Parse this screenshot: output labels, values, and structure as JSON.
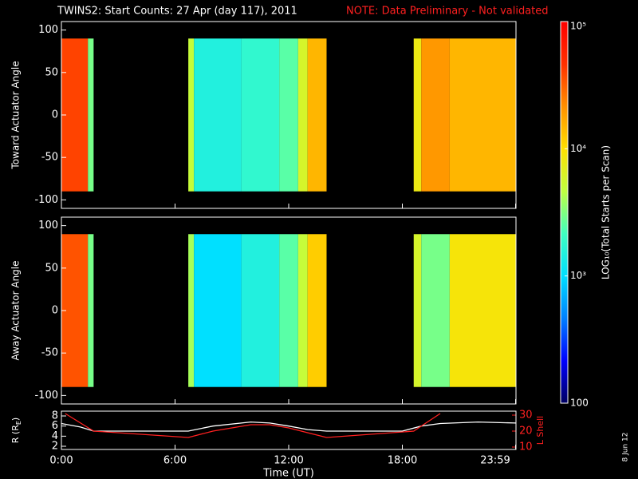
{
  "chart_data": {
    "type": "spectrogram",
    "title": "TWINS2: Start Counts: 27 Apr (day 117), 2011",
    "note": "NOTE: Data Preliminary - Not validated",
    "xlabel": "Time (UT)",
    "xlim": [
      0,
      24
    ],
    "xticks": [
      {
        "value": 0,
        "label": "0:00"
      },
      {
        "value": 6,
        "label": "6:00"
      },
      {
        "value": 12,
        "label": "12:00"
      },
      {
        "value": 18,
        "label": "18:00"
      },
      {
        "value": 23.98,
        "label": "23:59"
      }
    ],
    "colorbar": {
      "label": "LOG₁₀(Total Starts per Scan)",
      "log": true,
      "lim": [
        100,
        100000
      ],
      "ticks": [
        {
          "value": 100,
          "label": "100"
        },
        {
          "value": 1000,
          "label": "10³"
        },
        {
          "value": 10000,
          "label": "10⁴"
        },
        {
          "value": 100000,
          "label": "10⁵"
        }
      ],
      "colormap": [
        "#000060",
        "#0000ff",
        "#0080ff",
        "#00e0ff",
        "#40ffc0",
        "#c0ff40",
        "#ffe000",
        "#ff9000",
        "#ff3000",
        "#ff0000"
      ]
    },
    "panels": [
      {
        "ylabel": "Toward Actuator Angle",
        "ylim": [
          -110,
          110
        ],
        "yticks": [
          -100,
          -50,
          0,
          50,
          100
        ],
        "angle_range": [
          -90,
          90
        ],
        "time_bins": [
          0,
          1.4,
          1.7,
          6.7,
          7.0,
          9.5,
          11.5,
          12.5,
          13.0,
          14.0,
          18.6,
          19.0,
          20.5,
          24
        ],
        "values": [
          40000,
          3000,
          null,
          5000,
          1500,
          1800,
          2500,
          6000,
          15000,
          null,
          8000,
          20000,
          15000
        ]
      },
      {
        "ylabel": "Away Actuator Angle",
        "ylim": [
          -110,
          110
        ],
        "yticks": [
          -100,
          -50,
          0,
          50,
          100
        ],
        "angle_range": [
          -90,
          90
        ],
        "time_bins": [
          0,
          1.4,
          1.7,
          6.7,
          7.0,
          9.5,
          11.5,
          12.5,
          13.0,
          14.0,
          18.6,
          19.0,
          20.5,
          24
        ],
        "values": [
          35000,
          3000,
          null,
          4000,
          1000,
          1500,
          2500,
          5000,
          12000,
          null,
          6000,
          3000,
          9000
        ]
      },
      {
        "type": "line",
        "ylabel": "R (R",
        "ylabel_sub": "E",
        "ylabel_end": ")",
        "ylim": [
          1.37,
          8.95
        ],
        "yticks": [
          2,
          4,
          6,
          8
        ],
        "y2label": "L Shell",
        "y2lim": [
          8.5,
          32.5
        ],
        "y2ticks": [
          10,
          20,
          30
        ],
        "series": [
          {
            "name": "R",
            "color": "#ffffff",
            "x": [
              0,
              1,
              1.7,
              3,
              5,
              6.7,
              8,
              10,
              11,
              12,
              13,
              14,
              16,
              18,
              19,
              20,
              22,
              24
            ],
            "values": [
              6.5,
              5.8,
              5,
              5,
              5,
              5,
              6,
              6.8,
              6.6,
              6,
              5.3,
              5,
              5,
              5,
              6,
              6.5,
              6.8,
              6.6
            ]
          },
          {
            "name": "L Shell",
            "axis": "y2",
            "color": "#ff2020",
            "x": [
              0.2,
              1.7,
              6.7,
              8,
              10,
              11,
              12,
              14,
              18.6,
              20
            ],
            "values": [
              31,
              20,
              16,
              20,
              24,
              24,
              22,
              16,
              20,
              31
            ]
          }
        ]
      }
    ],
    "date_stamp": "8 Jun 12"
  }
}
